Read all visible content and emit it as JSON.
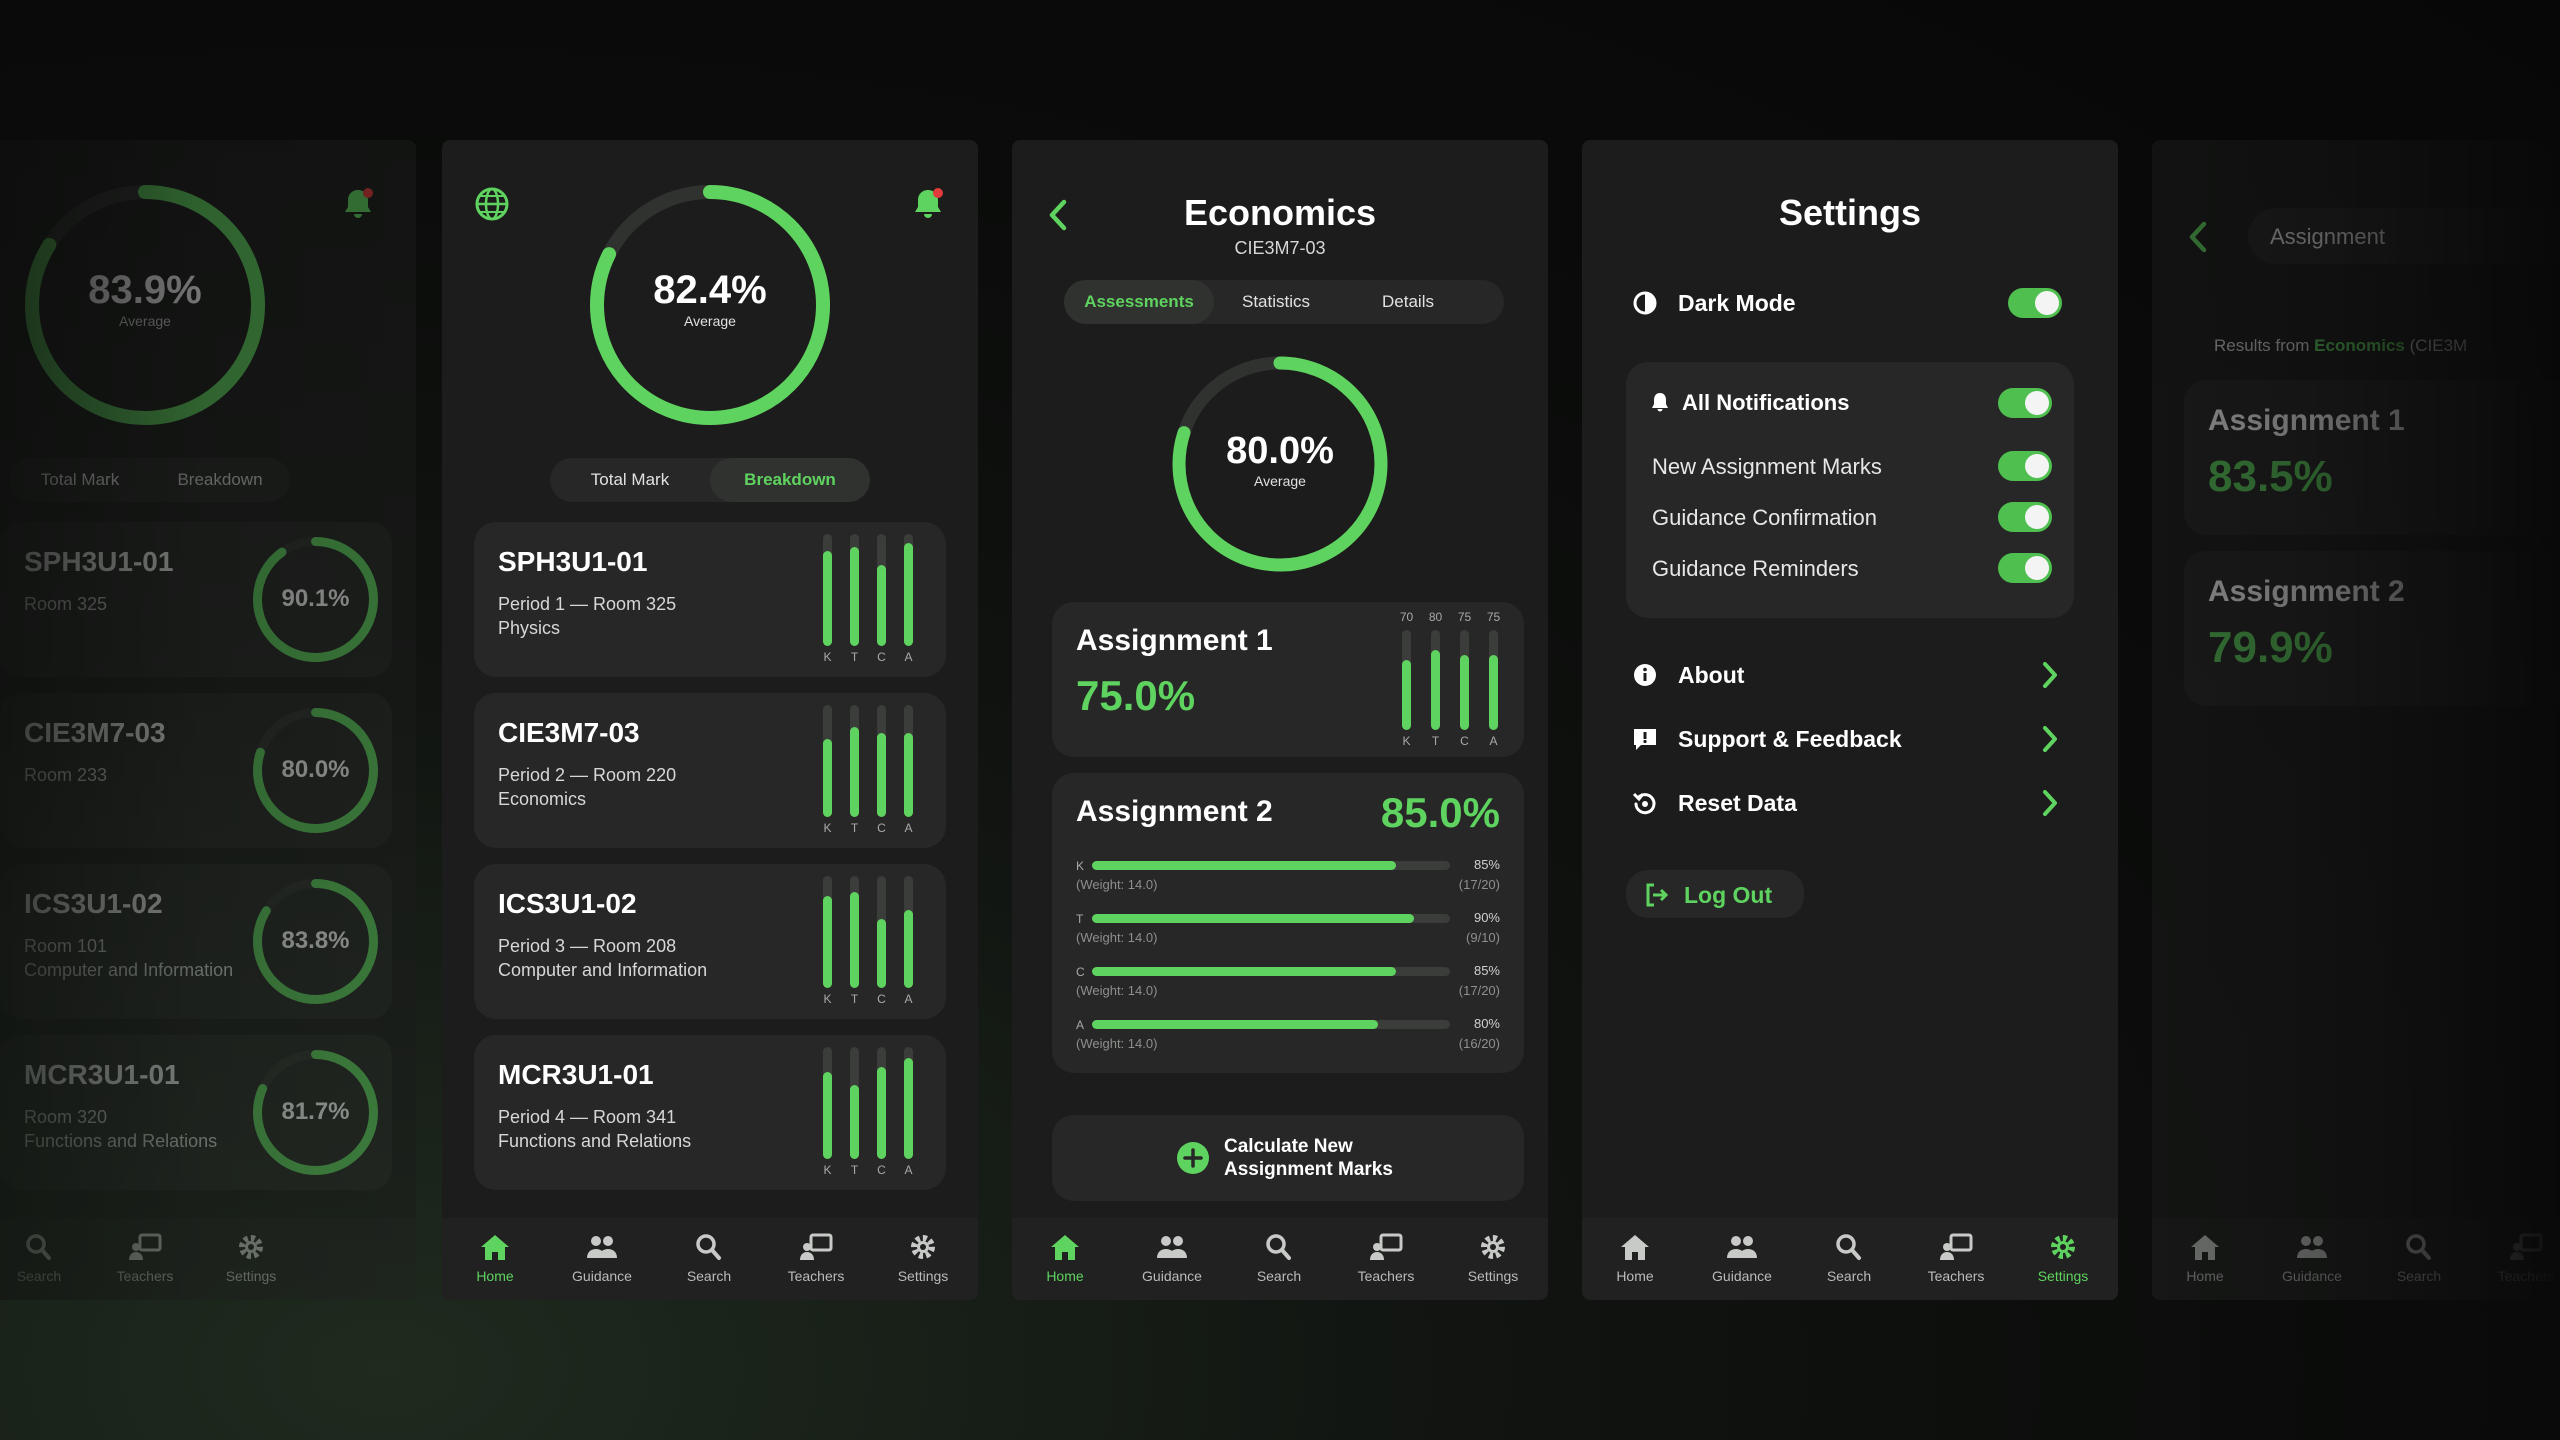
{
  "colors": {
    "accent": "#5fd35f",
    "card": "#262726",
    "panel": "#1b1c1b",
    "track": "#3b3d3b",
    "notify": "#e23b3b"
  },
  "nav": {
    "home": "Home",
    "guidance": "Guidance",
    "search": "Search",
    "teachers": "Teachers",
    "settings": "Settings"
  },
  "screen1": {
    "average": {
      "value": "83.9%",
      "label": "Average",
      "fraction": 0.839
    },
    "tabs": {
      "total": "Total Mark",
      "breakdown": "Breakdown"
    },
    "courses": [
      {
        "code": "SPH3U1-01",
        "room": "Room 325",
        "pct": "90.1%",
        "fraction": 0.901
      },
      {
        "code": "CIE3M7-03",
        "room": "Room 233",
        "pct": "80.0%",
        "fraction": 0.8
      },
      {
        "code": "ICS3U1-02",
        "room": "Room 101",
        "name": "Computer and Information",
        "pct": "83.8%",
        "fraction": 0.838
      },
      {
        "code": "MCR3U1-01",
        "room": "Room 320",
        "name": "Functions and Relations",
        "pct": "81.7%",
        "fraction": 0.817
      }
    ]
  },
  "screen2": {
    "average": {
      "value": "82.4%",
      "label": "Average",
      "fraction": 0.824
    },
    "tabs": {
      "total": "Total Mark",
      "breakdown": "Breakdown"
    },
    "courses": [
      {
        "code": "SPH3U1-01",
        "period": "Period 1 — Room 325",
        "name": "Physics",
        "kTCA": [
          0.85,
          0.88,
          0.72,
          0.92
        ]
      },
      {
        "code": "CIE3M7-03",
        "period": "Period 2 — Room 220",
        "name": "Economics",
        "kTCA": [
          0.7,
          0.8,
          0.75,
          0.75
        ]
      },
      {
        "code": "ICS3U1-02",
        "period": "Period 3 — Room 208",
        "name": "Computer and Information",
        "kTCA": [
          0.82,
          0.86,
          0.62,
          0.7
        ]
      },
      {
        "code": "MCR3U1-01",
        "period": "Period 4 — Room 341",
        "name": "Functions and Relations",
        "kTCA": [
          0.78,
          0.66,
          0.82,
          0.9
        ]
      }
    ],
    "bar_labels": [
      "K",
      "T",
      "C",
      "A"
    ]
  },
  "screen3": {
    "title": "Economics",
    "code": "CIE3M7-03",
    "tabs": [
      "Assessments",
      "Statistics",
      "Details"
    ],
    "average": {
      "value": "80.0%",
      "label": "Average",
      "fraction": 0.8
    },
    "assignment1": {
      "title": "Assignment 1",
      "pct": "75.0%",
      "bars": [
        {
          "label": "K",
          "value": "70",
          "fraction": 0.7
        },
        {
          "label": "T",
          "value": "80",
          "fraction": 0.8
        },
        {
          "label": "C",
          "value": "75",
          "fraction": 0.75
        },
        {
          "label": "A",
          "value": "75",
          "fraction": 0.75
        }
      ]
    },
    "assignment2": {
      "title": "Assignment 2",
      "pct": "85.0%",
      "rows": [
        {
          "label": "K",
          "pct": "85%",
          "weight": "(Weight: 14.0)",
          "score": "(17/20)",
          "fraction": 0.85
        },
        {
          "label": "T",
          "pct": "90%",
          "weight": "(Weight: 14.0)",
          "score": "(9/10)",
          "fraction": 0.9
        },
        {
          "label": "C",
          "pct": "85%",
          "weight": "(Weight: 14.0)",
          "score": "(17/20)",
          "fraction": 0.85
        },
        {
          "label": "A",
          "pct": "80%",
          "weight": "(Weight: 14.0)",
          "score": "(16/20)",
          "fraction": 0.8
        }
      ]
    },
    "calc_button": {
      "line1": "Calculate New",
      "line2": "Assignment Marks"
    }
  },
  "screen4": {
    "title": "Settings",
    "dark_mode": "Dark Mode",
    "notifications": {
      "all": "All Notifications",
      "items": [
        "New Assignment Marks",
        "Guidance Confirmation",
        "Guidance Reminders"
      ]
    },
    "links": [
      "About",
      "Support & Feedback",
      "Reset Data"
    ],
    "logout": "Log Out"
  },
  "screen5": {
    "title": "Assignment",
    "results_prefix": "Results from",
    "results_course": "Economics",
    "results_code": "(CIE3M",
    "items": [
      {
        "title": "Assignment 1",
        "pct": "83.5%"
      },
      {
        "title": "Assignment 2",
        "pct": "79.9%"
      }
    ]
  }
}
